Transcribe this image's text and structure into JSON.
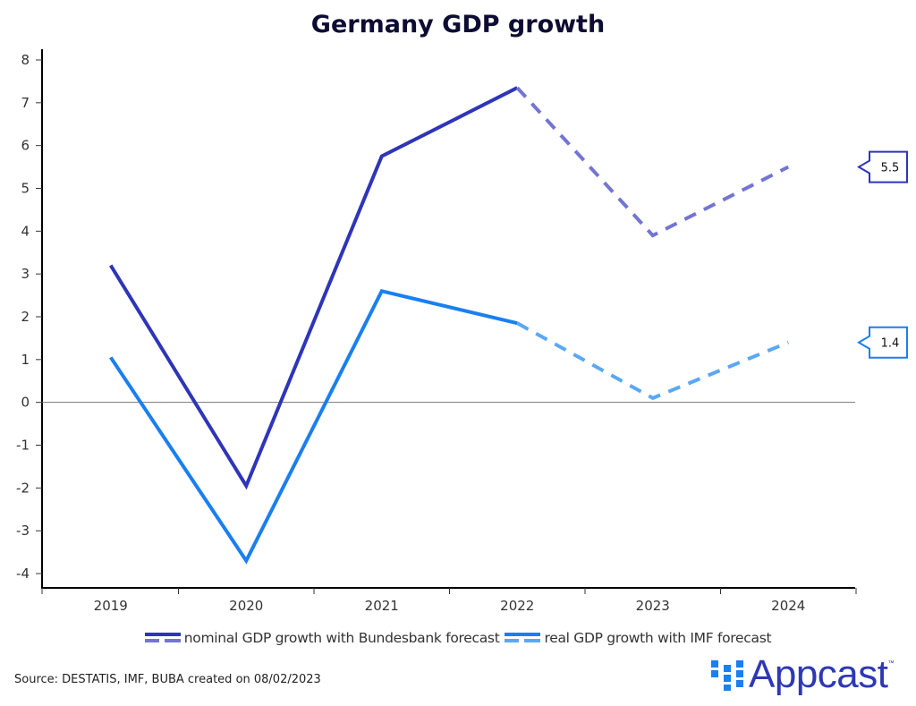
{
  "chart_data": {
    "type": "line",
    "title": "Germany GDP growth",
    "xlabel": "",
    "ylabel": "",
    "categories": [
      "2019",
      "2020",
      "2021",
      "2022",
      "2023",
      "2024"
    ],
    "ylim": [
      -4,
      8
    ],
    "yticks": [
      "8",
      "7",
      "6",
      "5",
      "4",
      "3",
      "2",
      "1",
      "0",
      "-1",
      "-2",
      "-3",
      "-4"
    ],
    "ytick_values": [
      8,
      7,
      6,
      5,
      4,
      3,
      2,
      1,
      0,
      -1,
      -2,
      -3,
      -4
    ],
    "zero_line": true,
    "grid": false,
    "legend_position": "bottom",
    "series": [
      {
        "name": "nominal GDP growth with Bundesbank forecast",
        "values": [
          3.2,
          -1.95,
          5.75,
          7.35,
          3.9,
          5.5
        ],
        "forecast_from_index": 3,
        "color": "#2e35b8",
        "forecast_color": "#7474d4",
        "end_label": "5.5"
      },
      {
        "name": "real GDP growth with IMF forecast",
        "values": [
          1.05,
          -3.7,
          2.6,
          1.85,
          0.1,
          1.4
        ],
        "forecast_from_index": 3,
        "color": "#1a7ff0",
        "forecast_color": "#5aa8f5",
        "end_label": "1.4"
      }
    ]
  },
  "footer": {
    "source": "Source: DESTATIS, IMF, BUBA created on 08/02/2023",
    "logo_text": "Appcast",
    "logo_tm": "™",
    "logo_color": "#2e38b5",
    "logo_dots_color": "#1a7ff0"
  }
}
